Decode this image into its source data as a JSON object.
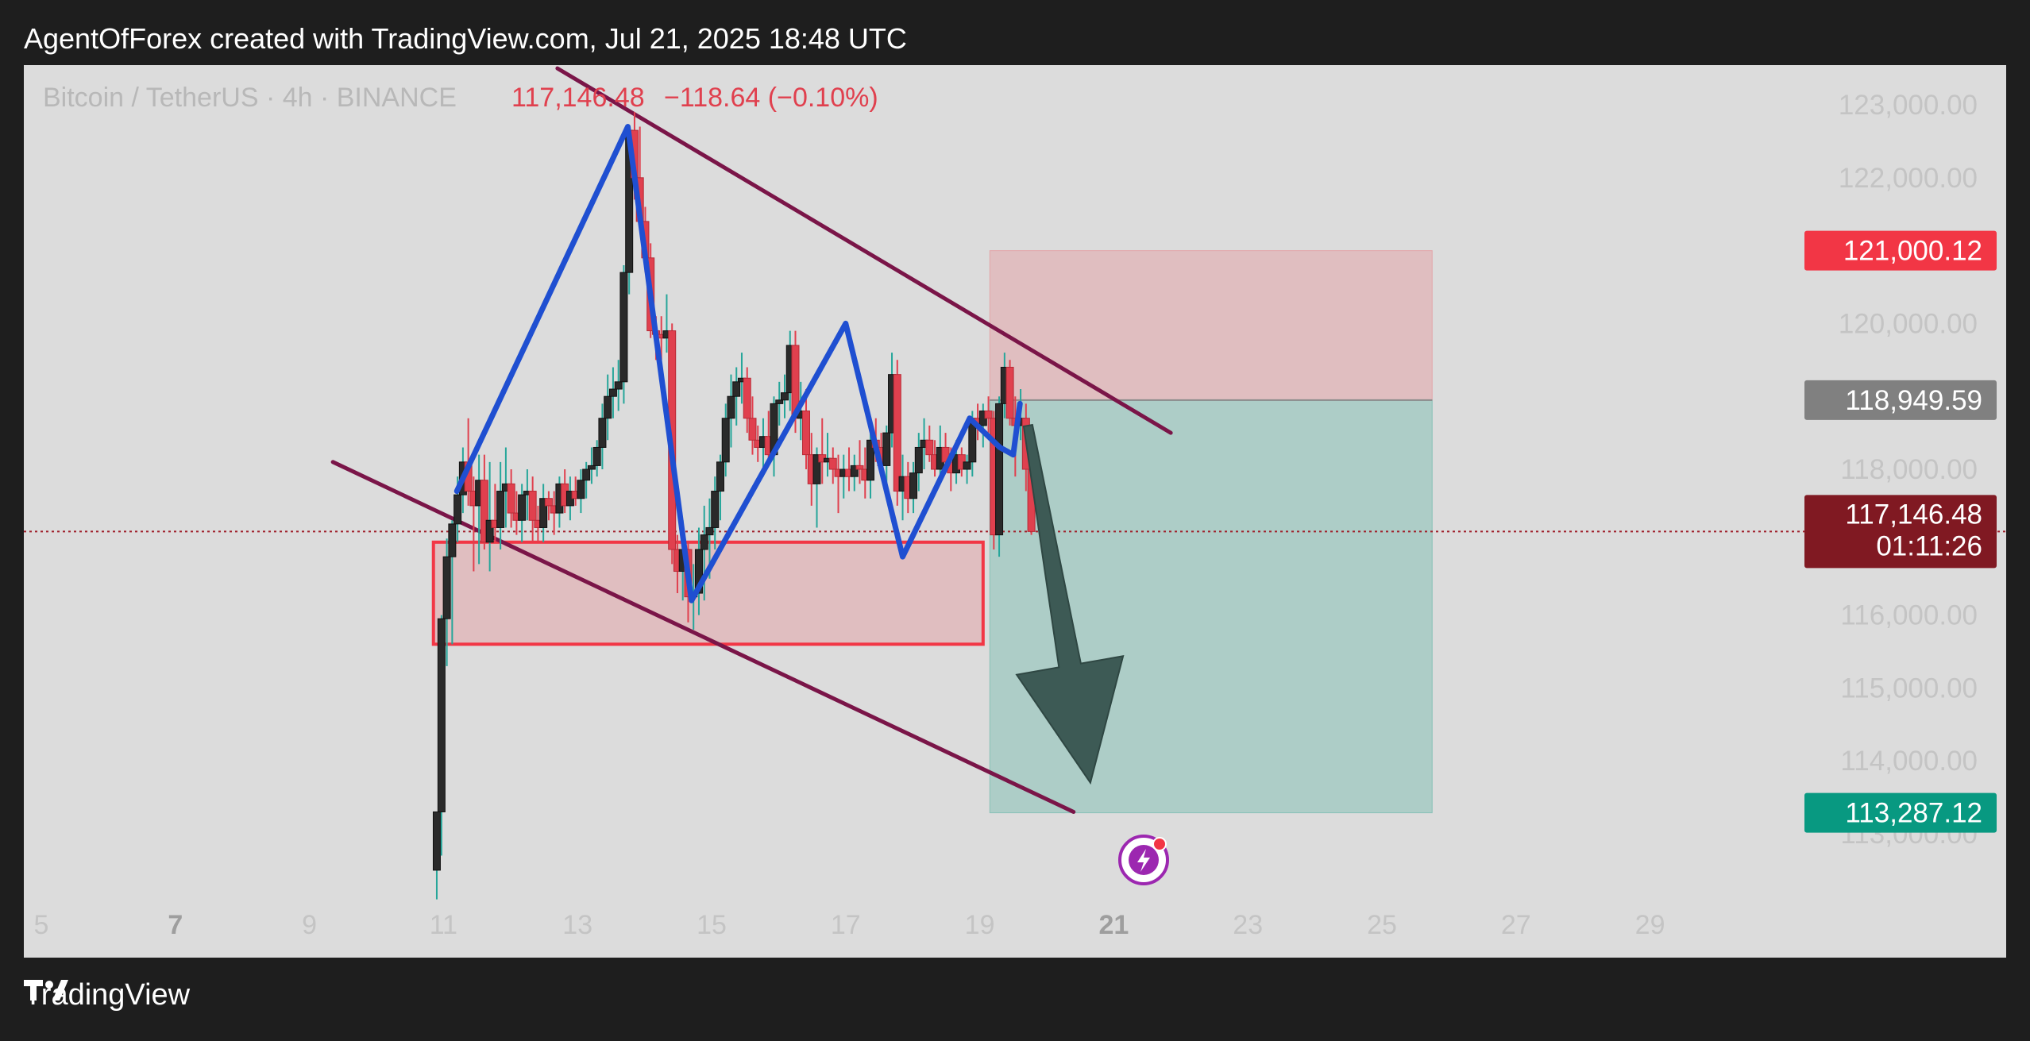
{
  "header": {
    "text": "AgentOfForex created with TradingView.com, Jul 21, 2025 18:48 UTC"
  },
  "footer": {
    "brand": "TradingView"
  },
  "chart_data": {
    "type": "candlestick",
    "symbol_title": "Bitcoin / TetherUS · 4h · BINANCE",
    "last_price_text": "117,146.48",
    "change_text": "−118.64 (−0.10%)",
    "y_ticks": [
      "123,000.00",
      "122,000.00",
      "120,000.00",
      "118,000.00",
      "116,000.00",
      "115,000.00",
      "114,000.00",
      "113,000.00"
    ],
    "y_tick_values": [
      123000,
      122000,
      120000,
      118000,
      116000,
      115000,
      114000,
      113000
    ],
    "x_ticks": [
      "5",
      "7",
      "9",
      "11",
      "13",
      "15",
      "17",
      "19",
      "21",
      "23",
      "25",
      "27",
      "29"
    ],
    "x_tick_days": [
      5,
      7,
      9,
      11,
      13,
      15,
      17,
      19,
      21,
      23,
      25,
      27,
      29
    ],
    "x_ticks_bold": [
      "7",
      "21"
    ],
    "price_labels": {
      "stop": {
        "text": "121,000.12",
        "value": 121000.12,
        "color": "#f23645"
      },
      "entry": {
        "text": "118,949.59",
        "value": 118949.59,
        "color": "#808080"
      },
      "current": {
        "text": "117,146.48",
        "countdown": "01:11:26",
        "value": 117146.48,
        "color": "#801922"
      },
      "target": {
        "text": "113,287.12",
        "value": 113287.12,
        "color": "#089981"
      }
    },
    "colors": {
      "up": "#2a2a2a",
      "down": "#e0404e",
      "wick_up": "#26a69a",
      "wick_down": "#e0404e",
      "channel": "#7a1548",
      "zigzag": "#1f4fd1",
      "zone": "#f23645",
      "arrow": "#3d5a55"
    },
    "candles": [
      {
        "d": 10.9,
        "o": 112500,
        "h": 113300,
        "l": 112100,
        "c": 113300
      },
      {
        "d": 10.97,
        "o": 113300,
        "h": 116000,
        "l": 112700,
        "c": 115950
      },
      {
        "d": 11.05,
        "o": 115950,
        "h": 117050,
        "l": 115300,
        "c": 116800
      },
      {
        "d": 11.13,
        "o": 116800,
        "h": 117300,
        "l": 115600,
        "c": 117250
      },
      {
        "d": 11.21,
        "o": 117250,
        "h": 117900,
        "l": 117000,
        "c": 117650
      },
      {
        "d": 11.29,
        "o": 117650,
        "h": 118300,
        "l": 117400,
        "c": 118100
      },
      {
        "d": 11.37,
        "o": 118100,
        "h": 118700,
        "l": 117500,
        "c": 117700
      },
      {
        "d": 11.45,
        "o": 117700,
        "h": 117900,
        "l": 116600,
        "c": 117500
      },
      {
        "d": 11.53,
        "o": 117500,
        "h": 118200,
        "l": 116700,
        "c": 117850
      },
      {
        "d": 11.61,
        "o": 117850,
        "h": 118200,
        "l": 116900,
        "c": 117000
      },
      {
        "d": 11.69,
        "o": 117000,
        "h": 118100,
        "l": 116600,
        "c": 117300
      },
      {
        "d": 11.77,
        "o": 117300,
        "h": 117800,
        "l": 117000,
        "c": 117200
      },
      {
        "d": 11.85,
        "o": 117200,
        "h": 118100,
        "l": 116900,
        "c": 117700
      },
      {
        "d": 11.93,
        "o": 117700,
        "h": 118300,
        "l": 117200,
        "c": 117800
      },
      {
        "d": 12.01,
        "o": 117800,
        "h": 118000,
        "l": 117200,
        "c": 117400
      },
      {
        "d": 12.09,
        "o": 117400,
        "h": 117700,
        "l": 117100,
        "c": 117300
      },
      {
        "d": 12.17,
        "o": 117300,
        "h": 117800,
        "l": 117000,
        "c": 117650
      },
      {
        "d": 12.25,
        "o": 117650,
        "h": 118000,
        "l": 117300,
        "c": 117700
      },
      {
        "d": 12.33,
        "o": 117700,
        "h": 117900,
        "l": 117000,
        "c": 117300
      },
      {
        "d": 12.41,
        "o": 117300,
        "h": 117500,
        "l": 117000,
        "c": 117200
      },
      {
        "d": 12.49,
        "o": 117200,
        "h": 117800,
        "l": 117000,
        "c": 117600
      },
      {
        "d": 12.57,
        "o": 117600,
        "h": 117700,
        "l": 117300,
        "c": 117500
      },
      {
        "d": 12.65,
        "o": 117500,
        "h": 117700,
        "l": 117100,
        "c": 117400
      },
      {
        "d": 12.73,
        "o": 117400,
        "h": 117900,
        "l": 117200,
        "c": 117800
      },
      {
        "d": 12.81,
        "o": 117800,
        "h": 118000,
        "l": 117400,
        "c": 117500
      },
      {
        "d": 12.89,
        "o": 117500,
        "h": 117900,
        "l": 117300,
        "c": 117700
      },
      {
        "d": 12.97,
        "o": 117700,
        "h": 117900,
        "l": 117500,
        "c": 117600
      },
      {
        "d": 13.05,
        "o": 117600,
        "h": 118000,
        "l": 117400,
        "c": 117850
      },
      {
        "d": 13.13,
        "o": 117850,
        "h": 118100,
        "l": 117600,
        "c": 118000
      },
      {
        "d": 13.21,
        "o": 118000,
        "h": 118300,
        "l": 117800,
        "c": 118050
      },
      {
        "d": 13.29,
        "o": 118050,
        "h": 118400,
        "l": 117900,
        "c": 118300
      },
      {
        "d": 13.37,
        "o": 118300,
        "h": 118900,
        "l": 118000,
        "c": 118700
      },
      {
        "d": 13.45,
        "o": 118700,
        "h": 119300,
        "l": 118400,
        "c": 119000
      },
      {
        "d": 13.53,
        "o": 119000,
        "h": 119400,
        "l": 118700,
        "c": 119100
      },
      {
        "d": 13.61,
        "o": 119100,
        "h": 119500,
        "l": 118800,
        "c": 119200
      },
      {
        "d": 13.69,
        "o": 119200,
        "h": 120800,
        "l": 118900,
        "c": 120700
      },
      {
        "d": 13.77,
        "o": 120700,
        "h": 122700,
        "l": 120400,
        "c": 122650
      },
      {
        "d": 13.85,
        "o": 122650,
        "h": 122900,
        "l": 121700,
        "c": 122000
      },
      {
        "d": 13.93,
        "o": 122000,
        "h": 122700,
        "l": 121300,
        "c": 121400
      },
      {
        "d": 14.01,
        "o": 121400,
        "h": 121600,
        "l": 120700,
        "c": 120900
      },
      {
        "d": 14.09,
        "o": 120900,
        "h": 121100,
        "l": 119800,
        "c": 119900
      },
      {
        "d": 14.17,
        "o": 119900,
        "h": 120100,
        "l": 119500,
        "c": 119850
      },
      {
        "d": 14.25,
        "o": 119850,
        "h": 120100,
        "l": 119500,
        "c": 119800
      },
      {
        "d": 14.33,
        "o": 119800,
        "h": 120400,
        "l": 119600,
        "c": 119900
      },
      {
        "d": 14.41,
        "o": 119900,
        "h": 120000,
        "l": 116700,
        "c": 116900
      },
      {
        "d": 14.49,
        "o": 116900,
        "h": 117100,
        "l": 116300,
        "c": 116600
      },
      {
        "d": 14.57,
        "o": 116600,
        "h": 117300,
        "l": 116200,
        "c": 116900
      },
      {
        "d": 14.65,
        "o": 116900,
        "h": 117000,
        "l": 115900,
        "c": 116250
      },
      {
        "d": 14.73,
        "o": 116250,
        "h": 116700,
        "l": 115800,
        "c": 116300
      },
      {
        "d": 14.81,
        "o": 116300,
        "h": 117200,
        "l": 116000,
        "c": 116900
      },
      {
        "d": 14.89,
        "o": 116900,
        "h": 117500,
        "l": 116200,
        "c": 117100
      },
      {
        "d": 14.97,
        "o": 117100,
        "h": 117600,
        "l": 116500,
        "c": 117200
      },
      {
        "d": 15.05,
        "o": 117200,
        "h": 117900,
        "l": 116900,
        "c": 117700
      },
      {
        "d": 15.13,
        "o": 117700,
        "h": 118200,
        "l": 117300,
        "c": 118100
      },
      {
        "d": 15.21,
        "o": 118100,
        "h": 118900,
        "l": 117900,
        "c": 118700
      },
      {
        "d": 15.29,
        "o": 118700,
        "h": 119300,
        "l": 118300,
        "c": 119000
      },
      {
        "d": 15.37,
        "o": 119000,
        "h": 119400,
        "l": 118600,
        "c": 119200
      },
      {
        "d": 15.45,
        "o": 119200,
        "h": 119600,
        "l": 118900,
        "c": 119250
      },
      {
        "d": 15.53,
        "o": 119250,
        "h": 119400,
        "l": 118500,
        "c": 118700
      },
      {
        "d": 15.61,
        "o": 118700,
        "h": 119000,
        "l": 118200,
        "c": 118400
      },
      {
        "d": 15.69,
        "o": 118400,
        "h": 118600,
        "l": 118100,
        "c": 118300
      },
      {
        "d": 15.77,
        "o": 118300,
        "h": 118700,
        "l": 117900,
        "c": 118450
      },
      {
        "d": 15.85,
        "o": 118450,
        "h": 118800,
        "l": 118100,
        "c": 118200
      },
      {
        "d": 15.93,
        "o": 118200,
        "h": 119000,
        "l": 117900,
        "c": 118900
      },
      {
        "d": 16.01,
        "o": 118900,
        "h": 119200,
        "l": 118600,
        "c": 118950
      },
      {
        "d": 16.09,
        "o": 118950,
        "h": 119300,
        "l": 118700,
        "c": 119050
      },
      {
        "d": 16.17,
        "o": 119050,
        "h": 119900,
        "l": 118800,
        "c": 119700
      },
      {
        "d": 16.25,
        "o": 119700,
        "h": 119900,
        "l": 118500,
        "c": 118700
      },
      {
        "d": 16.33,
        "o": 118700,
        "h": 119200,
        "l": 118400,
        "c": 118800
      },
      {
        "d": 16.41,
        "o": 118800,
        "h": 119100,
        "l": 118000,
        "c": 118200
      },
      {
        "d": 16.49,
        "o": 118200,
        "h": 118500,
        "l": 117500,
        "c": 117800
      },
      {
        "d": 16.57,
        "o": 117800,
        "h": 118300,
        "l": 117200,
        "c": 118200
      },
      {
        "d": 16.65,
        "o": 118200,
        "h": 118700,
        "l": 117800,
        "c": 118100
      },
      {
        "d": 16.73,
        "o": 118100,
        "h": 118500,
        "l": 117900,
        "c": 118150
      },
      {
        "d": 16.81,
        "o": 118150,
        "h": 118300,
        "l": 117800,
        "c": 118000
      },
      {
        "d": 16.89,
        "o": 118000,
        "h": 118200,
        "l": 117400,
        "c": 117900
      },
      {
        "d": 16.97,
        "o": 117900,
        "h": 118200,
        "l": 117600,
        "c": 118000
      },
      {
        "d": 17.05,
        "o": 118000,
        "h": 118300,
        "l": 117700,
        "c": 117900
      },
      {
        "d": 17.13,
        "o": 117900,
        "h": 118200,
        "l": 117700,
        "c": 118050
      },
      {
        "d": 17.21,
        "o": 118050,
        "h": 118400,
        "l": 117800,
        "c": 118000
      },
      {
        "d": 17.29,
        "o": 118000,
        "h": 118300,
        "l": 117600,
        "c": 117850
      },
      {
        "d": 17.37,
        "o": 117850,
        "h": 118500,
        "l": 117600,
        "c": 118400
      },
      {
        "d": 17.45,
        "o": 118400,
        "h": 118700,
        "l": 118100,
        "c": 118300
      },
      {
        "d": 17.53,
        "o": 118300,
        "h": 118500,
        "l": 117900,
        "c": 118050
      },
      {
        "d": 17.61,
        "o": 118050,
        "h": 118600,
        "l": 117700,
        "c": 118500
      },
      {
        "d": 17.69,
        "o": 118500,
        "h": 119600,
        "l": 118300,
        "c": 119300
      },
      {
        "d": 17.77,
        "o": 119300,
        "h": 119500,
        "l": 117500,
        "c": 117700
      },
      {
        "d": 17.85,
        "o": 117700,
        "h": 118200,
        "l": 117300,
        "c": 117900
      },
      {
        "d": 17.93,
        "o": 117900,
        "h": 118100,
        "l": 117400,
        "c": 117600
      },
      {
        "d": 18.01,
        "o": 117600,
        "h": 118100,
        "l": 117400,
        "c": 117950
      },
      {
        "d": 18.09,
        "o": 117950,
        "h": 118500,
        "l": 117700,
        "c": 118300
      },
      {
        "d": 18.17,
        "o": 118300,
        "h": 118700,
        "l": 118000,
        "c": 118400
      },
      {
        "d": 18.25,
        "o": 118400,
        "h": 118600,
        "l": 118100,
        "c": 118200
      },
      {
        "d": 18.33,
        "o": 118200,
        "h": 118400,
        "l": 117900,
        "c": 118000
      },
      {
        "d": 18.41,
        "o": 118000,
        "h": 118600,
        "l": 117800,
        "c": 118300
      },
      {
        "d": 18.49,
        "o": 118300,
        "h": 118500,
        "l": 118000,
        "c": 118100
      },
      {
        "d": 18.57,
        "o": 118100,
        "h": 118300,
        "l": 117700,
        "c": 117950
      },
      {
        "d": 18.65,
        "o": 117950,
        "h": 118400,
        "l": 117800,
        "c": 118200
      },
      {
        "d": 18.73,
        "o": 118200,
        "h": 118300,
        "l": 117900,
        "c": 118000
      },
      {
        "d": 18.81,
        "o": 118000,
        "h": 118200,
        "l": 117800,
        "c": 118100
      },
      {
        "d": 18.89,
        "o": 118100,
        "h": 118800,
        "l": 117900,
        "c": 118700
      },
      {
        "d": 18.97,
        "o": 118700,
        "h": 118900,
        "l": 118400,
        "c": 118600
      },
      {
        "d": 19.05,
        "o": 118600,
        "h": 118900,
        "l": 118300,
        "c": 118800
      },
      {
        "d": 19.13,
        "o": 118800,
        "h": 119000,
        "l": 118500,
        "c": 118700
      },
      {
        "d": 19.21,
        "o": 118700,
        "h": 118800,
        "l": 116900,
        "c": 117100
      },
      {
        "d": 19.29,
        "o": 117100,
        "h": 119000,
        "l": 116800,
        "c": 118900
      },
      {
        "d": 19.37,
        "o": 118900,
        "h": 119600,
        "l": 118700,
        "c": 119400
      },
      {
        "d": 19.45,
        "o": 119400,
        "h": 119500,
        "l": 118600,
        "c": 118700
      },
      {
        "d": 19.53,
        "o": 118700,
        "h": 119000,
        "l": 117900,
        "c": 118600
      },
      {
        "d": 19.61,
        "o": 118600,
        "h": 119100,
        "l": 118400,
        "c": 118700
      },
      {
        "d": 19.69,
        "o": 118700,
        "h": 118900,
        "l": 117700,
        "c": 118000
      },
      {
        "d": 19.77,
        "o": 118000,
        "h": 118200,
        "l": 117100,
        "c": 117146
      }
    ],
    "zigzag_points": [
      {
        "d": 11.2,
        "v": 117700
      },
      {
        "d": 13.75,
        "v": 122700
      },
      {
        "d": 14.7,
        "v": 116200
      },
      {
        "d": 17.0,
        "v": 120000
      },
      {
        "d": 17.85,
        "v": 116800
      },
      {
        "d": 18.85,
        "v": 118700
      },
      {
        "d": 19.3,
        "v": 118300
      },
      {
        "d": 19.5,
        "v": 118200
      },
      {
        "d": 19.6,
        "v": 118900
      }
    ],
    "zone": {
      "d1": 10.85,
      "d2": 19.05,
      "top": 117000,
      "bottom": 115600
    },
    "channel_upper": [
      {
        "d": 12.7,
        "v": 123500
      },
      {
        "d": 21.85,
        "v": 118500
      }
    ],
    "channel_lower": [
      {
        "d": 9.35,
        "v": 118100
      },
      {
        "d": 20.4,
        "v": 113300
      }
    ],
    "position": {
      "d1": 19.15,
      "d2": 25.75,
      "entry": 118949.59,
      "stop": 121000.12,
      "target": 113287.12
    },
    "arrow": {
      "from": {
        "d": 19.72,
        "v": 118600
      },
      "to": {
        "d": 20.65,
        "v": 113700
      }
    }
  }
}
